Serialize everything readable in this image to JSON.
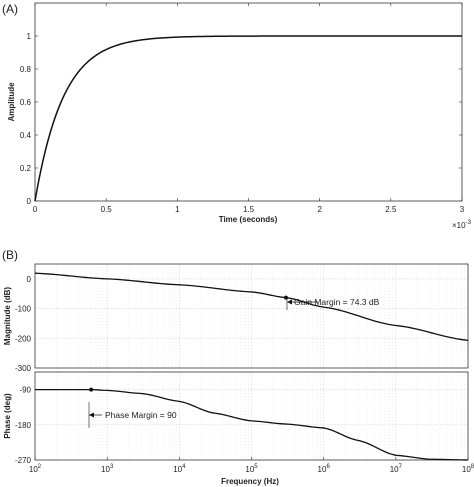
{
  "panel_a_label": "(A)",
  "panel_b_label": "(B)",
  "chart_data": [
    {
      "type": "line",
      "panel": "A",
      "xlabel": "Time (seconds)",
      "ylabel": "Amplitude",
      "x_multiplier_base": "×10",
      "x_multiplier_exp": "-3",
      "xlim": [
        0,
        3
      ],
      "ylim": [
        0,
        1.2
      ],
      "x_ticks": [
        "0",
        "0.5",
        "1",
        "1.5",
        "2",
        "2.5",
        "3"
      ],
      "y_ticks": [
        "0",
        "0.2",
        "0.4",
        "0.6",
        "0.8",
        "1"
      ],
      "tau": 0.2,
      "final_value": 1,
      "x": [
        0,
        0.05,
        0.1,
        0.15,
        0.2,
        0.25,
        0.3,
        0.35,
        0.4,
        0.45,
        0.5,
        0.6,
        0.7,
        0.8,
        0.9,
        1.0,
        1.2,
        1.4,
        1.6,
        2.0,
        2.5,
        3.0
      ],
      "y": [
        0,
        0.221,
        0.393,
        0.528,
        0.632,
        0.713,
        0.777,
        0.826,
        0.865,
        0.895,
        0.918,
        0.95,
        0.97,
        0.982,
        0.989,
        0.993,
        0.998,
        0.999,
        1.0,
        1.0,
        1.0,
        1.0
      ]
    },
    {
      "type": "line",
      "panel": "B-magnitude",
      "ylabel": "Magnitude (dB)",
      "x_scale": "log",
      "xlim": [
        100,
        100000000
      ],
      "ylim": [
        -300,
        50
      ],
      "y_ticks": [
        0,
        -100,
        -200,
        -300
      ],
      "x": [
        100,
        1000,
        10000,
        100000,
        300000,
        1000000,
        10000000,
        100000000
      ],
      "y": [
        19,
        0,
        -20,
        -44,
        -63,
        -95,
        -157,
        -207
      ],
      "annotation": "Gain Margin = 74.3 dB",
      "marker": {
        "x": 300000,
        "y": -63
      }
    },
    {
      "type": "line",
      "panel": "B-phase",
      "xlabel": "Frequency  (Hz)",
      "ylabel": "Phase (deg)",
      "x_scale": "log",
      "xlim": [
        100,
        100000000
      ],
      "ylim": [
        -270,
        -45
      ],
      "y_ticks": [
        -90,
        -180,
        -270
      ],
      "x_tick_exponents": [
        2,
        3,
        4,
        5,
        6,
        7,
        8
      ],
      "x_tick_base": "10",
      "x": [
        100,
        600,
        1000,
        3000,
        10000,
        30000,
        100000,
        300000,
        1000000,
        3000000,
        10000000,
        30000000,
        100000000
      ],
      "y": [
        -90,
        -90,
        -92,
        -100,
        -120,
        -150,
        -170,
        -178,
        -188,
        -220,
        -258,
        -268,
        -270
      ],
      "annotation": "Phase Margin = 90",
      "marker": {
        "x": 600,
        "y": -90
      }
    }
  ]
}
